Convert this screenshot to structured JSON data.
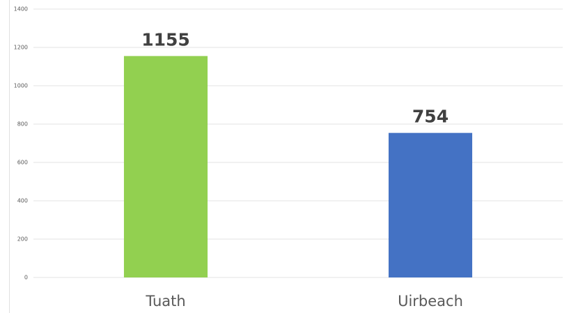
{
  "chart_data": {
    "type": "bar",
    "categories": [
      "Tuath",
      "Uirbeach"
    ],
    "values": [
      1155,
      754
    ],
    "colors": [
      "#92d050",
      "#4472c4"
    ],
    "ylim": [
      0,
      1400
    ],
    "yticks": [
      0,
      200,
      400,
      600,
      800,
      1000,
      1200,
      1400
    ],
    "grid": true
  }
}
